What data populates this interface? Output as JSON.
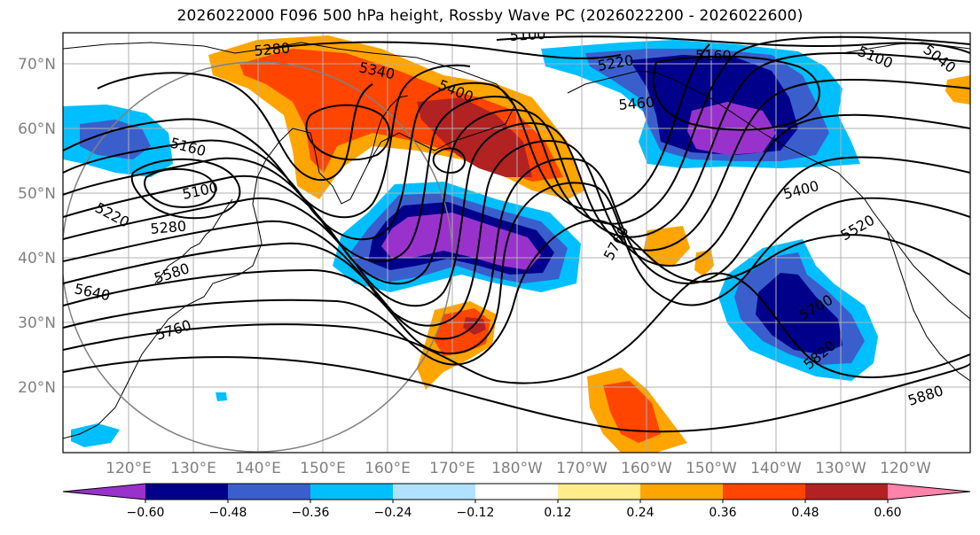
{
  "title": "2026022000 F096 500 hPa height, Rossby Wave PC (2026022200 - 2026022600)",
  "lat_labels": [
    "70°N",
    "60°N",
    "50°N",
    "40°N",
    "30°N",
    "20°N"
  ],
  "lon_labels": [
    "120°E",
    "130°E",
    "140°E",
    "150°E",
    "160°E",
    "170°E",
    "180°W",
    "170°W",
    "160°W",
    "150°W",
    "140°W",
    "130°W",
    "120°W"
  ],
  "colorbar": {
    "ticks": [
      "−0.60",
      "−0.48",
      "−0.36",
      "−0.24",
      "−0.12",
      "0.12",
      "0.24",
      "0.36",
      "0.48",
      "0.60"
    ],
    "colors": [
      "#9932cc",
      "#00008b",
      "#3a5fcd",
      "#00bfff",
      "#b0e2ff",
      "#ffffff",
      "#ffec8b",
      "#ffa500",
      "#ff4500",
      "#b22222",
      "#ff82ab"
    ]
  },
  "contour_labels": [
    {
      "text": "5100",
      "value": 5100
    },
    {
      "text": "5280",
      "value": 5280
    },
    {
      "text": "5340",
      "value": 5340
    },
    {
      "text": "5400",
      "value": 5400
    },
    {
      "text": "5220",
      "value": 5220
    },
    {
      "text": "5160",
      "value": 5160
    },
    {
      "text": "5100",
      "value": 5100
    },
    {
      "text": "5040",
      "value": 5040
    },
    {
      "text": "5160",
      "value": 5160
    },
    {
      "text": "5100",
      "value": 5100
    },
    {
      "text": "5220",
      "value": 5220
    },
    {
      "text": "5280",
      "value": 5280
    },
    {
      "text": "5580",
      "value": 5580
    },
    {
      "text": "5640",
      "value": 5640
    },
    {
      "text": "5760",
      "value": 5760
    },
    {
      "text": "5760",
      "value": 5760
    },
    {
      "text": "5460",
      "value": 5460
    },
    {
      "text": "5400",
      "value": 5400
    },
    {
      "text": "5520",
      "value": 5520
    },
    {
      "text": "5700",
      "value": 5700
    },
    {
      "text": "5820",
      "value": 5820
    },
    {
      "text": "5880",
      "value": 5880
    }
  ]
}
